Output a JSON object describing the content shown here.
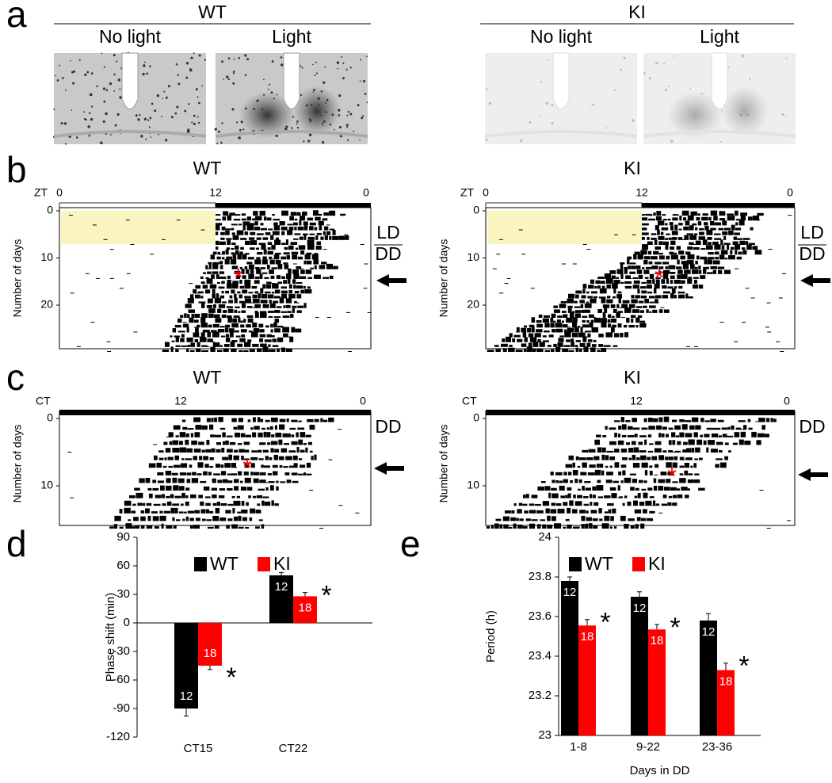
{
  "panel_labels": [
    "a",
    "b",
    "c",
    "d",
    "e"
  ],
  "a": {
    "groups": [
      {
        "title": "WT",
        "conditions": [
          "No light",
          "Light"
        ]
      },
      {
        "title": "KI",
        "conditions": [
          "No light",
          "Light"
        ]
      }
    ]
  },
  "b": {
    "plots": [
      {
        "title": "WT",
        "axis_prefix": "ZT",
        "ticks": [
          "0",
          "12",
          "0"
        ]
      },
      {
        "title": "KI",
        "axis_prefix": "ZT",
        "ticks": [
          "0",
          "12",
          "0"
        ]
      }
    ],
    "y_label": "Number of days",
    "yticks": [
      0,
      10,
      20
    ],
    "phases": [
      "LD",
      "DD"
    ]
  },
  "c": {
    "plots": [
      {
        "title": "WT",
        "axis_prefix": "CT",
        "ticks": [
          "12",
          "0"
        ]
      },
      {
        "title": "KI",
        "axis_prefix": "CT",
        "ticks": [
          "12",
          "0"
        ]
      }
    ],
    "y_label": "Number of days",
    "yticks": [
      0,
      10
    ],
    "phase": "DD"
  },
  "chart_data": [
    {
      "type": "bar",
      "y_label": "Phase shift (min)",
      "categories": [
        "CT15",
        "CT22"
      ],
      "series": [
        {
          "name": "WT",
          "color": "#000000",
          "values": [
            -90,
            50
          ],
          "errors": [
            8,
            3
          ],
          "sample_sizes": [
            "12",
            "12"
          ]
        },
        {
          "name": "KI",
          "color": "#ff0000",
          "values": [
            -45,
            28
          ],
          "errors": [
            4,
            4
          ],
          "sample_sizes": [
            "18",
            "18"
          ]
        }
      ],
      "significance": [
        "*",
        "*"
      ],
      "ylim": [
        -120,
        90
      ],
      "yticks": [
        -120,
        -90,
        -60,
        -30,
        0,
        30,
        60,
        90
      ],
      "legend": "top"
    },
    {
      "type": "bar",
      "y_label": "Period (h)",
      "x_label": "Days in DD",
      "categories": [
        "1-8",
        "9-22",
        "23-36"
      ],
      "series": [
        {
          "name": "WT",
          "color": "#000000",
          "values": [
            23.78,
            23.7,
            23.58
          ],
          "errors": [
            0.02,
            0.025,
            0.035
          ],
          "sample_sizes": [
            "12",
            "12",
            "12"
          ]
        },
        {
          "name": "KI",
          "color": "#ff0000",
          "values": [
            23.555,
            23.535,
            23.33
          ],
          "errors": [
            0.03,
            0.025,
            0.035
          ],
          "sample_sizes": [
            "18",
            "18",
            "18"
          ]
        }
      ],
      "significance": [
        "*",
        "*",
        "*"
      ],
      "ylim": [
        23,
        24
      ],
      "yticks": [
        23,
        23.2,
        23.4,
        23.6,
        23.8,
        24
      ],
      "legend": "top"
    }
  ]
}
